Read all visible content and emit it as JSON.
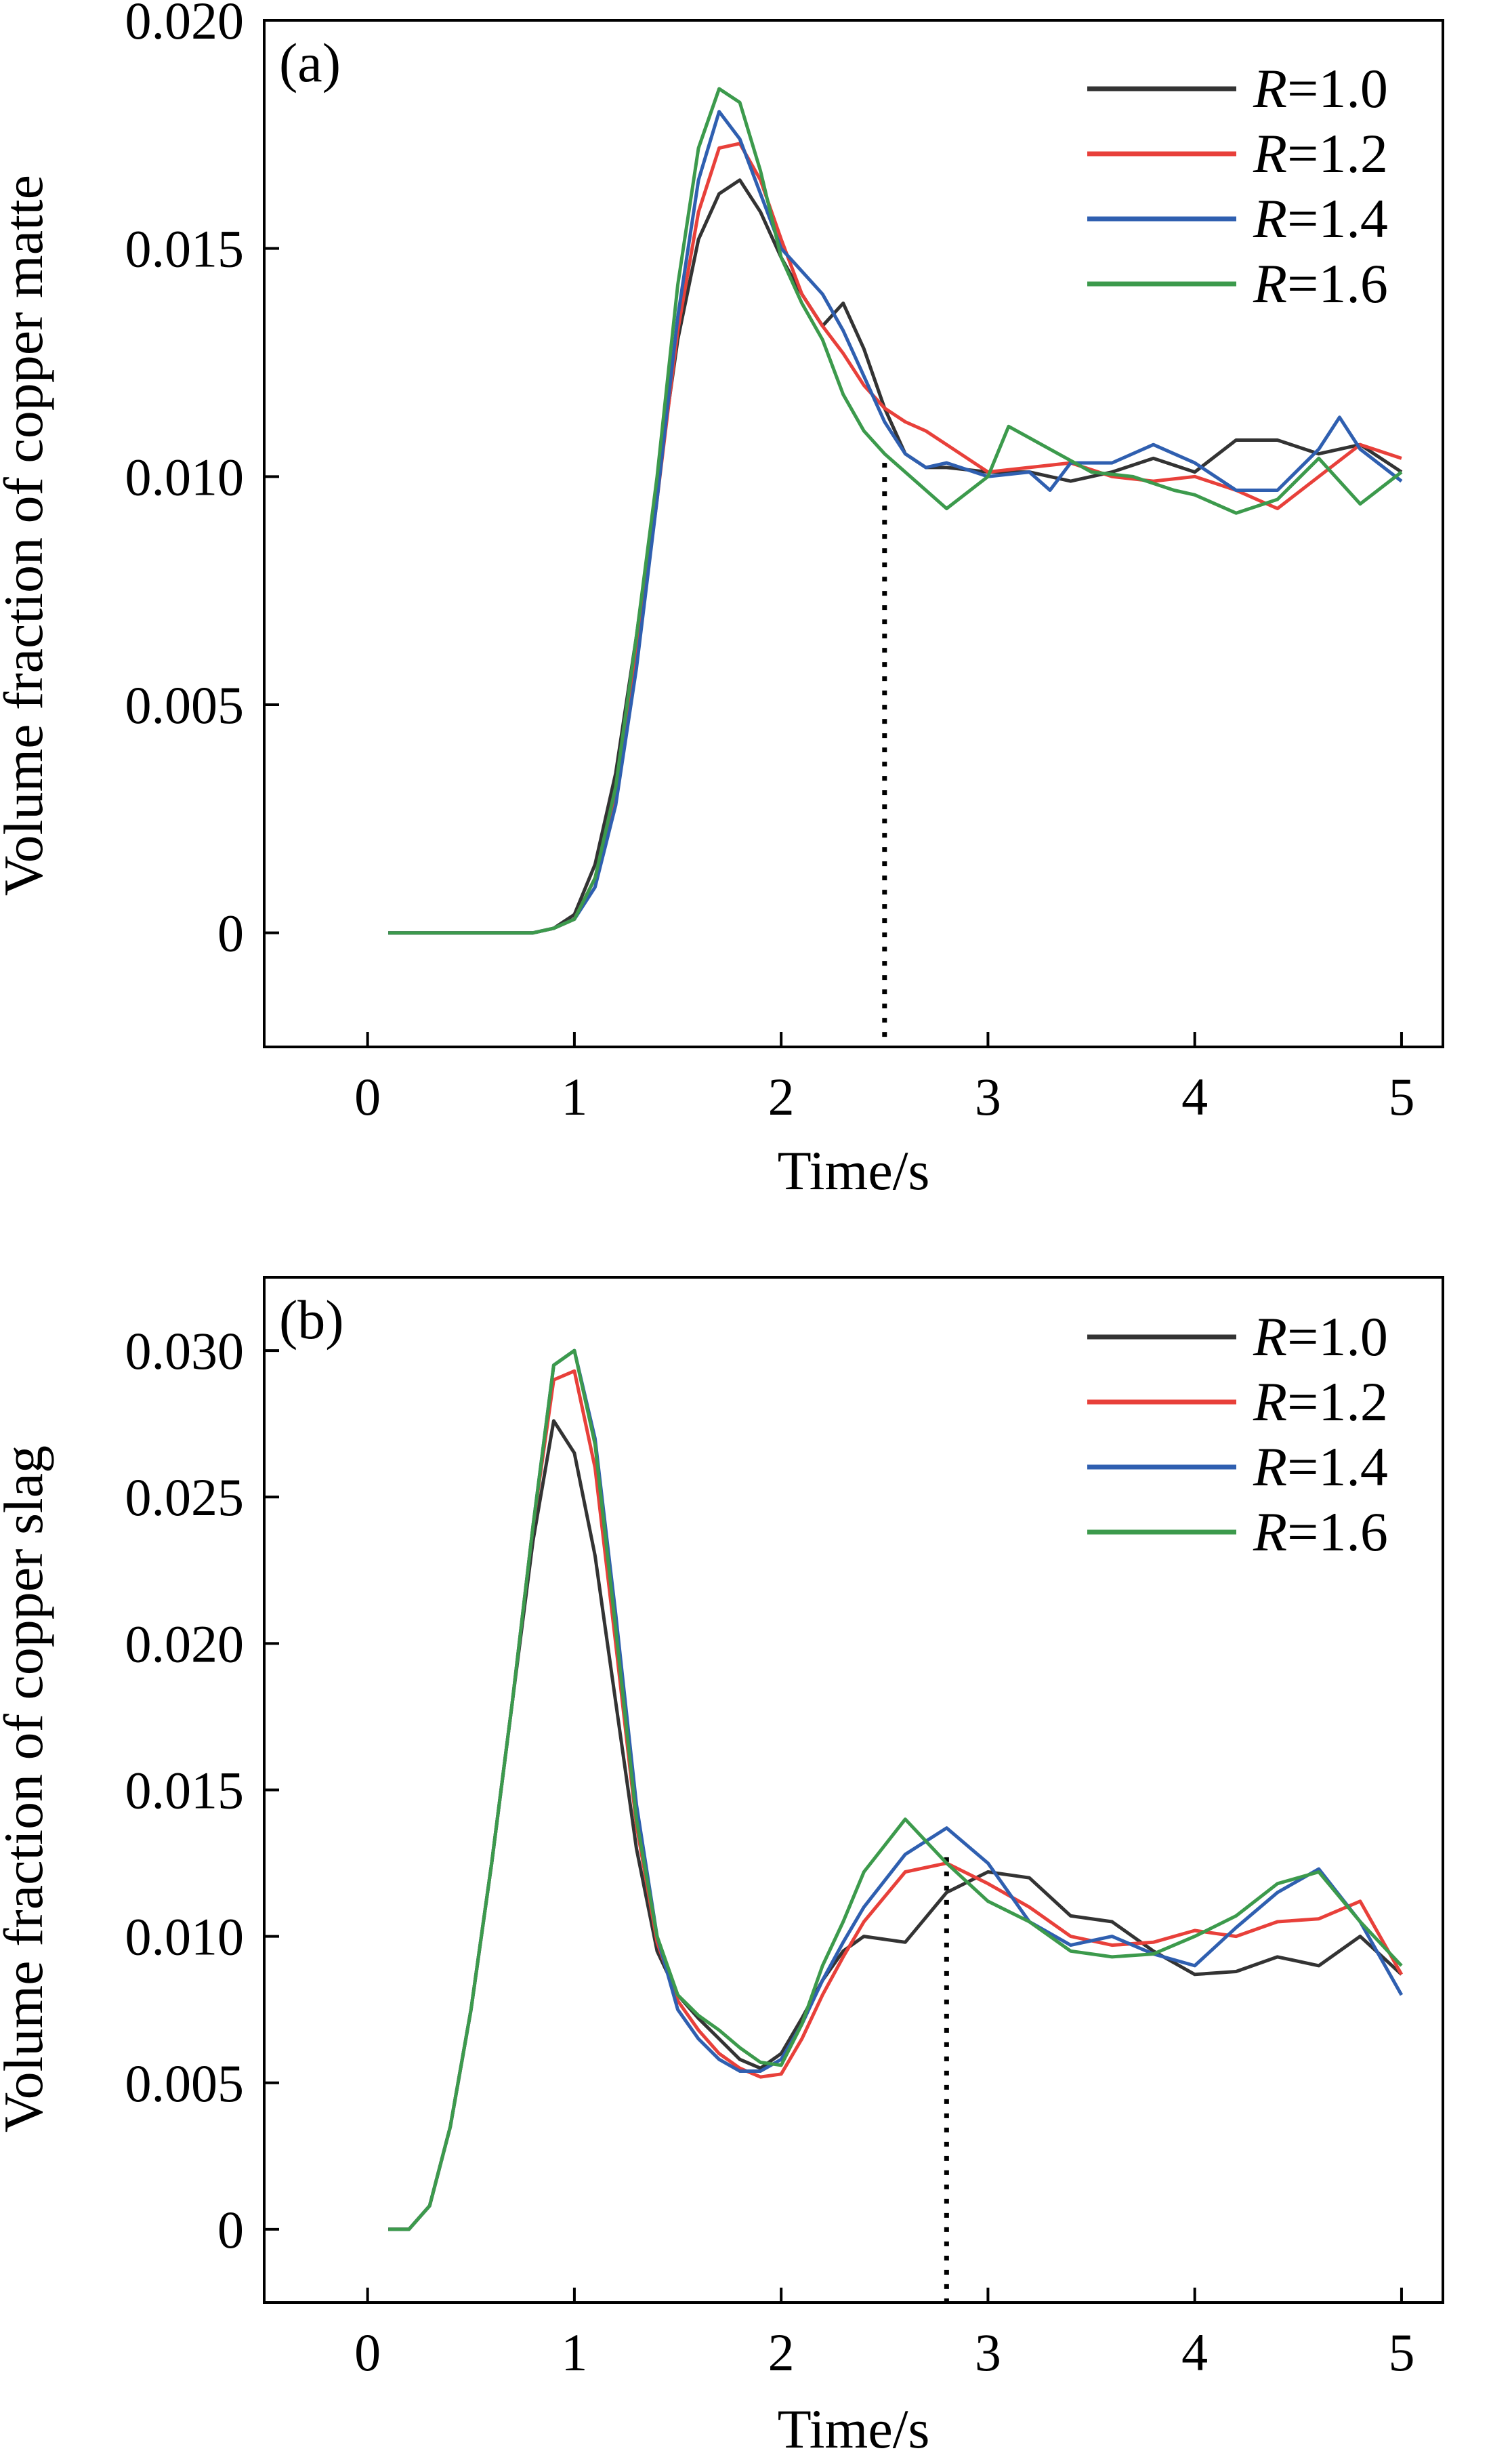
{
  "chart_data": [
    {
      "type": "line",
      "panel_label": "(a)",
      "xlabel": "Time/s",
      "ylabel": "Volume fraction of copper matte",
      "xlim": [
        -0.5,
        5.2
      ],
      "ylim": [
        -0.0025,
        0.02
      ],
      "xticks": [
        0,
        1,
        2,
        3,
        4,
        5
      ],
      "xtick_labels": [
        "0",
        "1",
        "2",
        "3",
        "4",
        "5"
      ],
      "yticks": [
        0,
        0.005,
        0.01,
        0.015,
        0.02
      ],
      "ytick_labels": [
        "0",
        "0.005",
        "0.010",
        "0.015",
        "0.020"
      ],
      "grid": false,
      "legend_position": "top-right",
      "marker_line": {
        "x": 2.5,
        "y_from": -0.0025,
        "y_to": 0.0103,
        "style": "dotted"
      },
      "series": [
        {
          "legend_var": "R",
          "legend_val": "=1.0",
          "color": "#333333",
          "x": [
            0.1,
            0.8,
            0.9,
            1.0,
            1.1,
            1.2,
            1.3,
            1.4,
            1.5,
            1.6,
            1.7,
            1.8,
            1.9,
            2.0,
            2.1,
            2.2,
            2.3,
            2.4,
            2.5,
            2.6,
            2.7,
            2.8,
            3.0,
            3.2,
            3.4,
            3.6,
            3.8,
            4.0,
            4.2,
            4.4,
            4.6,
            4.8,
            5.0
          ],
          "y": [
            0,
            0,
            0.0001,
            0.0004,
            0.0015,
            0.0035,
            0.0065,
            0.0098,
            0.013,
            0.0152,
            0.0162,
            0.0165,
            0.0158,
            0.0148,
            0.014,
            0.0133,
            0.0138,
            0.0128,
            0.0115,
            0.0105,
            0.0102,
            0.0102,
            0.0101,
            0.0101,
            0.0099,
            0.0101,
            0.0104,
            0.0101,
            0.0108,
            0.0108,
            0.0105,
            0.0107,
            0.0101
          ]
        },
        {
          "legend_var": "R",
          "legend_val": "=1.2",
          "color": "#e8403a",
          "x": [
            0.1,
            0.8,
            0.9,
            1.0,
            1.1,
            1.2,
            1.3,
            1.4,
            1.5,
            1.6,
            1.7,
            1.8,
            1.9,
            2.0,
            2.1,
            2.2,
            2.3,
            2.4,
            2.5,
            2.6,
            2.7,
            2.8,
            3.0,
            3.2,
            3.4,
            3.6,
            3.8,
            4.0,
            4.2,
            4.4,
            4.6,
            4.8,
            5.0
          ],
          "y": [
            0,
            0,
            0.0001,
            0.0003,
            0.0012,
            0.003,
            0.006,
            0.0095,
            0.0132,
            0.0158,
            0.0172,
            0.0173,
            0.0165,
            0.0152,
            0.014,
            0.0133,
            0.0127,
            0.012,
            0.0115,
            0.0112,
            0.011,
            0.0107,
            0.0101,
            0.0102,
            0.0103,
            0.01,
            0.0099,
            0.01,
            0.0097,
            0.0093,
            0.01,
            0.0107,
            0.0104
          ]
        },
        {
          "legend_var": "R",
          "legend_val": "=1.4",
          "color": "#2f5fb0",
          "x": [
            0.1,
            0.8,
            0.9,
            1.0,
            1.1,
            1.2,
            1.3,
            1.4,
            1.5,
            1.6,
            1.7,
            1.8,
            1.9,
            2.0,
            2.1,
            2.2,
            2.3,
            2.4,
            2.5,
            2.6,
            2.7,
            2.8,
            3.0,
            3.2,
            3.3,
            3.4,
            3.6,
            3.8,
            4.0,
            4.2,
            4.4,
            4.6,
            4.7,
            4.8,
            5.0
          ],
          "y": [
            0,
            0,
            0.0001,
            0.0003,
            0.001,
            0.0028,
            0.0058,
            0.0095,
            0.0135,
            0.0165,
            0.018,
            0.0174,
            0.0162,
            0.015,
            0.0145,
            0.014,
            0.0132,
            0.0122,
            0.0112,
            0.0105,
            0.0102,
            0.0103,
            0.01,
            0.0101,
            0.0097,
            0.0103,
            0.0103,
            0.0107,
            0.0103,
            0.0097,
            0.0097,
            0.0106,
            0.0113,
            0.0106,
            0.0099
          ]
        },
        {
          "legend_var": "R",
          "legend_val": "=1.6",
          "color": "#3c9a4c",
          "x": [
            0.1,
            0.8,
            0.9,
            1.0,
            1.1,
            1.2,
            1.3,
            1.4,
            1.5,
            1.6,
            1.7,
            1.8,
            1.9,
            2.0,
            2.1,
            2.2,
            2.3,
            2.4,
            2.5,
            2.6,
            2.7,
            2.8,
            3.0,
            3.1,
            3.3,
            3.5,
            3.7,
            3.9,
            4.0,
            4.2,
            4.4,
            4.6,
            4.8,
            5.0
          ],
          "y": [
            0,
            0,
            0.0001,
            0.0003,
            0.0012,
            0.0032,
            0.0065,
            0.01,
            0.0142,
            0.0172,
            0.0185,
            0.0182,
            0.0167,
            0.0148,
            0.0138,
            0.013,
            0.0118,
            0.011,
            0.0105,
            0.0101,
            0.0097,
            0.0093,
            0.01,
            0.0111,
            0.0106,
            0.0101,
            0.01,
            0.0097,
            0.0096,
            0.0092,
            0.0095,
            0.0104,
            0.0094,
            0.0101
          ]
        }
      ]
    },
    {
      "type": "line",
      "panel_label": "(b)",
      "xlabel": "Time/s",
      "ylabel": "Volume fraction of copper slag",
      "xlim": [
        -0.5,
        5.2
      ],
      "ylim": [
        -0.0025,
        0.0325
      ],
      "xticks": [
        0,
        1,
        2,
        3,
        4,
        5
      ],
      "xtick_labels": [
        "0",
        "1",
        "2",
        "3",
        "4",
        "5"
      ],
      "yticks": [
        0,
        0.005,
        0.01,
        0.015,
        0.02,
        0.025,
        0.03
      ],
      "ytick_labels": [
        "0",
        "0.005",
        "0.010",
        "0.015",
        "0.020",
        "0.025",
        "0.030"
      ],
      "grid": false,
      "legend_position": "top-right",
      "marker_line": {
        "x": 2.8,
        "y_from": -0.0025,
        "y_to": 0.0127,
        "style": "dotted"
      },
      "series": [
        {
          "legend_var": "R",
          "legend_val": "=1.0",
          "color": "#333333",
          "x": [
            0.1,
            0.2,
            0.3,
            0.4,
            0.5,
            0.6,
            0.7,
            0.8,
            0.9,
            1.0,
            1.1,
            1.2,
            1.3,
            1.4,
            1.5,
            1.6,
            1.7,
            1.8,
            1.9,
            2.0,
            2.1,
            2.2,
            2.3,
            2.4,
            2.6,
            2.8,
            3.0,
            3.2,
            3.4,
            3.6,
            3.8,
            4.0,
            4.2,
            4.4,
            4.6,
            4.8,
            5.0
          ],
          "y": [
            0,
            0,
            0.0008,
            0.0035,
            0.0075,
            0.0125,
            0.018,
            0.0235,
            0.0276,
            0.0265,
            0.023,
            0.018,
            0.013,
            0.0095,
            0.008,
            0.0072,
            0.0065,
            0.0058,
            0.0055,
            0.006,
            0.0072,
            0.0085,
            0.0095,
            0.01,
            0.0098,
            0.0115,
            0.0122,
            0.012,
            0.0107,
            0.0105,
            0.0095,
            0.0087,
            0.0088,
            0.0093,
            0.009,
            0.01,
            0.0087
          ]
        },
        {
          "legend_var": "R",
          "legend_val": "=1.2",
          "color": "#e8403a",
          "x": [
            0.1,
            0.2,
            0.3,
            0.4,
            0.5,
            0.6,
            0.7,
            0.8,
            0.9,
            1.0,
            1.1,
            1.2,
            1.3,
            1.4,
            1.5,
            1.6,
            1.7,
            1.8,
            1.9,
            2.0,
            2.1,
            2.2,
            2.3,
            2.4,
            2.6,
            2.8,
            3.0,
            3.2,
            3.4,
            3.6,
            3.8,
            4.0,
            4.2,
            4.4,
            4.6,
            4.8,
            5.0
          ],
          "y": [
            0,
            0,
            0.0008,
            0.0035,
            0.0075,
            0.0125,
            0.018,
            0.024,
            0.029,
            0.0293,
            0.026,
            0.02,
            0.0138,
            0.0098,
            0.0078,
            0.0068,
            0.006,
            0.0055,
            0.0052,
            0.0053,
            0.0065,
            0.008,
            0.0093,
            0.0105,
            0.0122,
            0.0125,
            0.0118,
            0.011,
            0.01,
            0.0097,
            0.0098,
            0.0102,
            0.01,
            0.0105,
            0.0106,
            0.0112,
            0.0087
          ]
        },
        {
          "legend_var": "R",
          "legend_val": "=1.4",
          "color": "#2f5fb0",
          "x": [
            0.1,
            0.2,
            0.3,
            0.4,
            0.5,
            0.6,
            0.7,
            0.8,
            0.9,
            1.0,
            1.1,
            1.2,
            1.3,
            1.4,
            1.5,
            1.6,
            1.7,
            1.8,
            1.9,
            2.0,
            2.1,
            2.2,
            2.3,
            2.4,
            2.6,
            2.8,
            3.0,
            3.2,
            3.4,
            3.6,
            3.8,
            4.0,
            4.2,
            4.4,
            4.6,
            4.8,
            5.0
          ],
          "y": [
            0,
            0,
            0.0008,
            0.0035,
            0.0075,
            0.0125,
            0.018,
            0.024,
            0.0295,
            0.03,
            0.027,
            0.021,
            0.0145,
            0.01,
            0.0075,
            0.0065,
            0.0058,
            0.0054,
            0.0054,
            0.0058,
            0.007,
            0.0085,
            0.0098,
            0.011,
            0.0128,
            0.0137,
            0.0125,
            0.0105,
            0.0097,
            0.01,
            0.0094,
            0.009,
            0.0103,
            0.0115,
            0.0123,
            0.0105,
            0.008
          ]
        },
        {
          "legend_var": "R",
          "legend_val": "=1.6",
          "color": "#3c9a4c",
          "x": [
            0.1,
            0.2,
            0.3,
            0.4,
            0.5,
            0.6,
            0.7,
            0.8,
            0.9,
            1.0,
            1.1,
            1.2,
            1.3,
            1.4,
            1.5,
            1.6,
            1.7,
            1.8,
            1.9,
            2.0,
            2.1,
            2.2,
            2.3,
            2.4,
            2.6,
            2.8,
            3.0,
            3.2,
            3.4,
            3.6,
            3.8,
            4.0,
            4.2,
            4.4,
            4.6,
            4.8,
            5.0
          ],
          "y": [
            0,
            0,
            0.0008,
            0.0035,
            0.0075,
            0.0125,
            0.018,
            0.024,
            0.0295,
            0.03,
            0.0268,
            0.0205,
            0.014,
            0.01,
            0.008,
            0.0073,
            0.0068,
            0.0062,
            0.0057,
            0.0056,
            0.007,
            0.009,
            0.0105,
            0.0122,
            0.014,
            0.0125,
            0.0112,
            0.0105,
            0.0095,
            0.0093,
            0.0094,
            0.01,
            0.0107,
            0.0118,
            0.0122,
            0.0105,
            0.009
          ]
        }
      ]
    }
  ]
}
